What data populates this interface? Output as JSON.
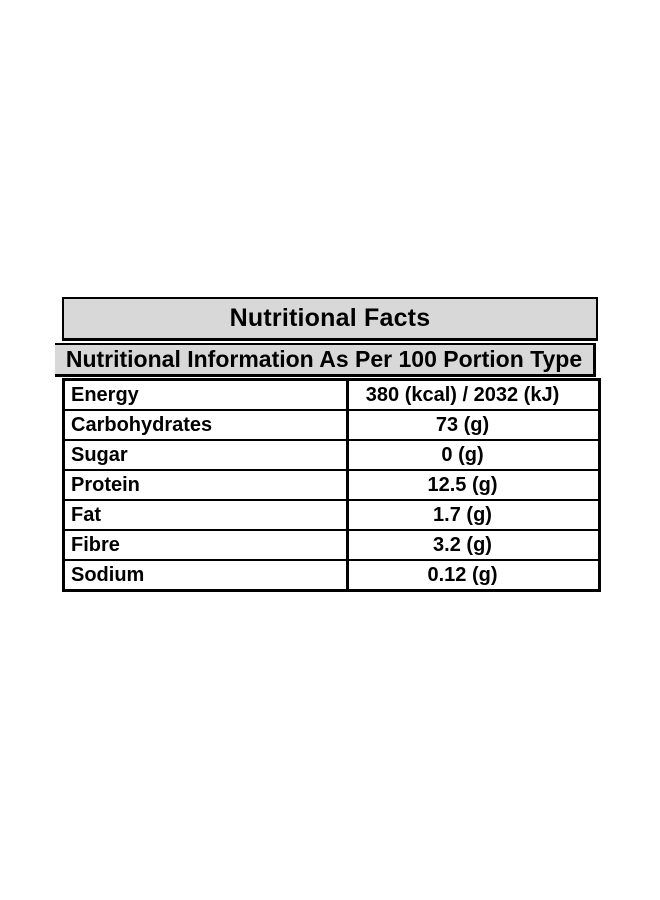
{
  "page": {
    "background_color": "#ffffff"
  },
  "table": {
    "title": "Nutritional Facts",
    "subtitle": "Nutritional Information As Per 100 Portion Type",
    "header_bg_color": "#d8d8d8",
    "border_color": "#000000",
    "rows": [
      {
        "label": "Energy",
        "value": "380 (kcal) / 2032 (kJ)"
      },
      {
        "label": "Carbohydrates",
        "value": "73 (g)"
      },
      {
        "label": "Sugar",
        "value": "0 (g)"
      },
      {
        "label": "Protein",
        "value": "12.5 (g)"
      },
      {
        "label": "Fat",
        "value": "1.7 (g)"
      },
      {
        "label": "Fibre",
        "value": "3.2 (g)"
      },
      {
        "label": "Sodium",
        "value": "0.12 (g)"
      }
    ]
  }
}
